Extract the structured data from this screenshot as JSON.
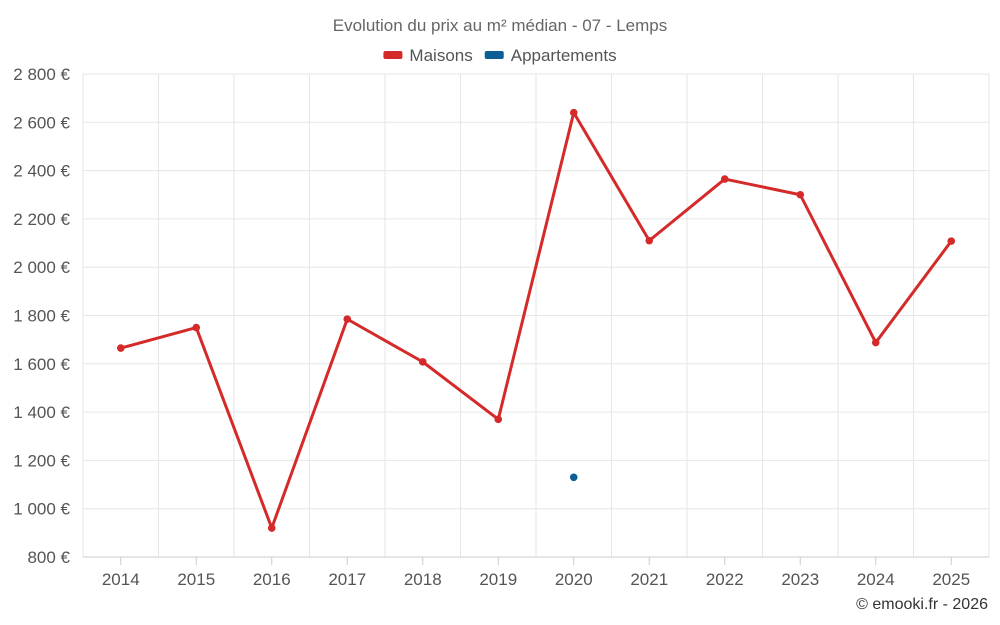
{
  "chart_data": {
    "type": "line",
    "title": "Evolution du prix au m² médian - 07 - Lemps",
    "categories": [
      "2014",
      "2015",
      "2016",
      "2017",
      "2018",
      "2019",
      "2020",
      "2021",
      "2022",
      "2023",
      "2024",
      "2025"
    ],
    "series": [
      {
        "name": "Maisons",
        "color": "#d42a2a",
        "values": [
          1665,
          1750,
          920,
          1785,
          1608,
          1370,
          2640,
          2110,
          2365,
          2300,
          1688,
          2108
        ]
      },
      {
        "name": "Appartements",
        "color": "#0b5f96",
        "values": [
          null,
          null,
          null,
          null,
          null,
          null,
          1130,
          null,
          null,
          null,
          null,
          null
        ]
      }
    ],
    "ylim": [
      800,
      2800
    ],
    "yticks": [
      800,
      1000,
      1200,
      1400,
      1600,
      1800,
      2000,
      2200,
      2400,
      2600,
      2800
    ],
    "ytick_labels": [
      "800 €",
      "1 000 €",
      "1 200 €",
      "1 400 €",
      "1 600 €",
      "1 800 €",
      "2 000 €",
      "2 200 €",
      "2 400 €",
      "2 600 €",
      "2 800 €"
    ],
    "xlabel": "",
    "ylabel": "",
    "grid": true,
    "legend_position": "top-center"
  },
  "credit": "© emooki.fr - 2026"
}
